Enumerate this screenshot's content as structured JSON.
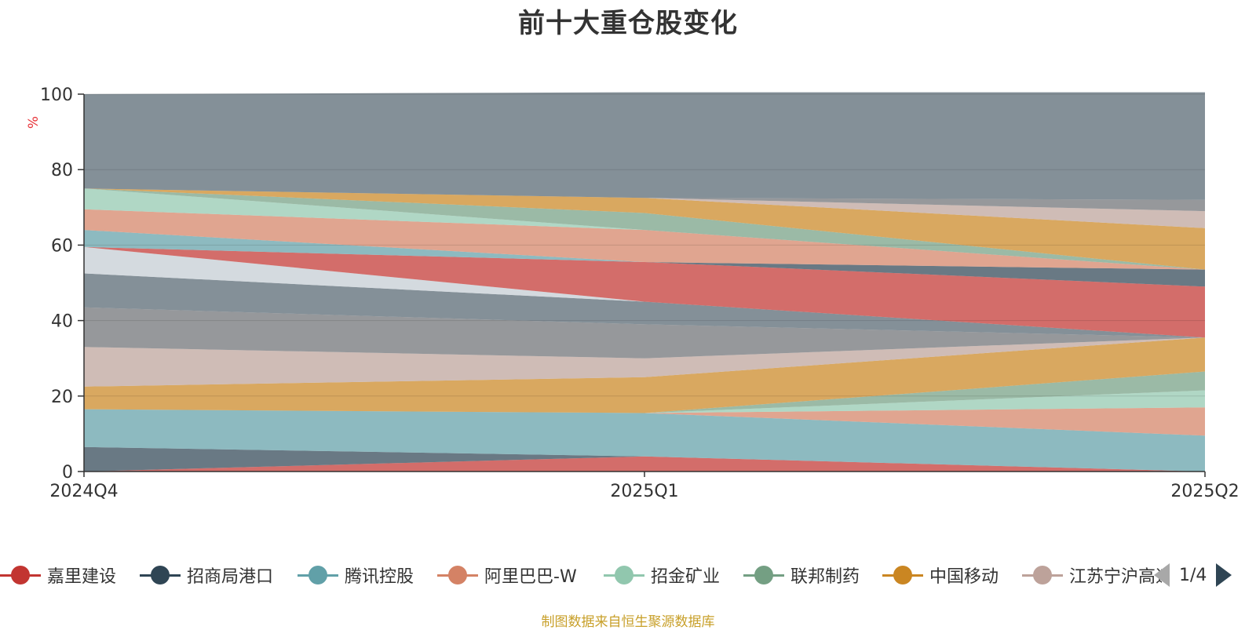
{
  "title": "前十大重仓股变化",
  "y_unit": "%",
  "source_note": "制图数据来自恒生聚源数据库",
  "legend": {
    "page": "1/4",
    "items": [
      {
        "name": "嘉里建设",
        "color": "#c23531"
      },
      {
        "name": "招商局港口",
        "color": "#2f4554"
      },
      {
        "name": "腾讯控股",
        "color": "#61a0a8"
      },
      {
        "name": "阿里巴巴-W",
        "color": "#d48265"
      },
      {
        "name": "招金矿业",
        "color": "#91c7ae"
      },
      {
        "name": "联邦制药",
        "color": "#749f83"
      },
      {
        "name": "中国移动",
        "color": "#ca8622"
      },
      {
        "name": "江苏宁沪高速",
        "color": "#bda29a"
      }
    ]
  },
  "chart_data": {
    "type": "area",
    "stacked": true,
    "x": [
      "2024Q4",
      "2025Q1",
      "2025Q2"
    ],
    "ylim": [
      0,
      100
    ],
    "yticks": [
      0,
      20,
      40,
      60,
      80,
      100
    ],
    "grid": true,
    "series": [
      {
        "color": "#c23531",
        "values": [
          0,
          4,
          0
        ]
      },
      {
        "color": "#2f4554",
        "values": [
          6.5,
          0,
          0
        ]
      },
      {
        "color": "#61a0a8",
        "values": [
          10,
          11.5,
          9.5
        ]
      },
      {
        "color": "#d48265",
        "values": [
          0,
          0,
          7.5
        ]
      },
      {
        "color": "#91c7ae",
        "values": [
          0,
          0,
          4.5
        ]
      },
      {
        "color": "#749f83",
        "values": [
          0,
          0,
          5
        ]
      },
      {
        "color": "#ca8622",
        "values": [
          6,
          9.5,
          9
        ]
      },
      {
        "color": "#bda29a",
        "values": [
          10.5,
          5,
          0
        ]
      },
      {
        "color": "#6e7074",
        "values": [
          10.5,
          9,
          0
        ]
      },
      {
        "color": "#546570",
        "values": [
          9,
          6,
          0
        ]
      },
      {
        "color": "#c4ccd3",
        "values": [
          7,
          0,
          0
        ]
      },
      {
        "color": "#c23531",
        "values": [
          0,
          10.5,
          13.5
        ]
      },
      {
        "color": "#2f4554",
        "values": [
          0,
          0,
          4.5
        ]
      },
      {
        "color": "#61a0a8",
        "values": [
          4.5,
          0,
          0
        ]
      },
      {
        "color": "#d48265",
        "values": [
          5.5,
          8.5,
          0
        ]
      },
      {
        "color": "#91c7ae",
        "values": [
          5.5,
          0,
          0
        ]
      },
      {
        "color": "#749f83",
        "values": [
          0,
          4.5,
          0
        ]
      },
      {
        "color": "#ca8622",
        "values": [
          0,
          4,
          11
        ]
      },
      {
        "color": "#bda29a",
        "values": [
          0,
          0,
          4.5
        ]
      },
      {
        "color": "#6e7074",
        "values": [
          0,
          0,
          3
        ]
      },
      {
        "color": "#546570",
        "values": [
          25,
          28,
          28.5
        ]
      }
    ]
  }
}
